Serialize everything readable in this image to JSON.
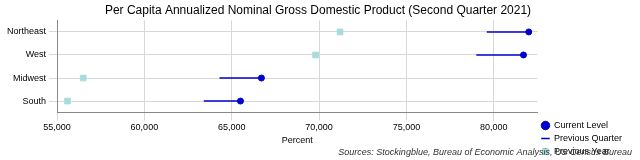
{
  "chart_data": {
    "type": "dot",
    "title": "Per Capita Annualized Nominal Gross Domestic Product (Second Quarter 2021)",
    "x_label": "Percent",
    "annotations": [
      "Sources: Stockingblue, Bureau of Economic Analysis, US Census Bureau"
    ],
    "categories": [
      "Northeast",
      "West",
      "Midwest",
      "South"
    ],
    "series": [
      {
        "name": "Current Level",
        "color": "#0000cd",
        "marker": "circle",
        "values": [
          82000,
          81700,
          66700,
          65500
        ]
      },
      {
        "name": "Previous Quarter",
        "color": "#0000cd",
        "line_style": "solid",
        "values": [
          79600,
          79000,
          64300,
          63400
        ]
      },
      {
        "name": "Previous Year",
        "color": "#a8dcdc",
        "marker": "square",
        "values": [
          71200,
          69800,
          56500,
          55600
        ]
      }
    ],
    "orientation": "horizontal",
    "xlim": [
      55000,
      82500
    ],
    "xticks": [
      {
        "value": 55000,
        "label": "55,000"
      },
      {
        "value": 60000,
        "label": "60,000"
      },
      {
        "value": 65000,
        "label": "65,000"
      },
      {
        "value": 70000,
        "label": "70,000"
      },
      {
        "value": 75000,
        "label": "75,000"
      },
      {
        "value": 80000,
        "label": "80,000"
      }
    ],
    "grid": true,
    "legend": "lower right"
  }
}
